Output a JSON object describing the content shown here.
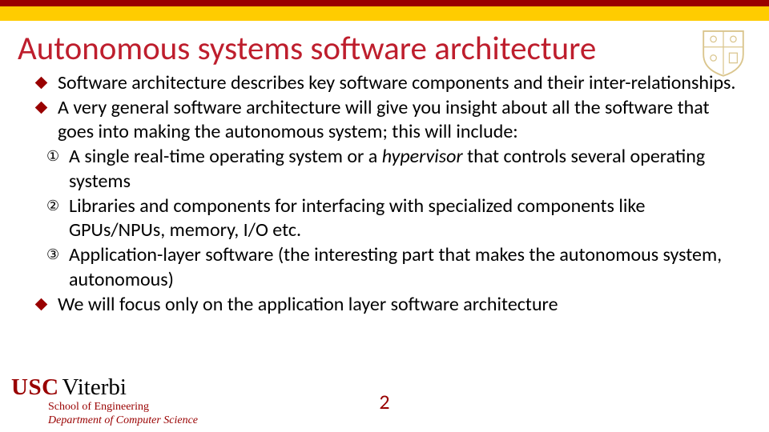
{
  "colors": {
    "cardinal": "#990000",
    "gold": "#ffcc00",
    "title": "#be1e2d",
    "text": "#000000",
    "shield": "#d4bc7a"
  },
  "title": "Autonomous systems software architecture",
  "bullets": [
    {
      "level": 1,
      "text": "Software architecture describes key software components and their inter-relationships."
    },
    {
      "level": 1,
      "text": "A very general software architecture will give you insight about all the software that goes into making the autonomous system; this will include:"
    },
    {
      "level": 2,
      "marker": "①",
      "html": "A single real-time operating system or a <span class='italic'>hypervisor</span> that controls several operating systems"
    },
    {
      "level": 2,
      "marker": "②",
      "text": "Libraries and components for interfacing with specialized components like GPUs/NPUs, memory, I/O etc."
    },
    {
      "level": 2,
      "marker": "③",
      "text": "Application-layer software (the interesting part that makes the autonomous system, autonomous)"
    },
    {
      "level": 1,
      "text": "We will focus only on the application layer software architecture"
    }
  ],
  "footer": {
    "brand_bold": "USC",
    "brand_light": "Viterbi",
    "line1": "School of Engineering",
    "line2": "Department of Computer Science"
  },
  "page_number": "2"
}
